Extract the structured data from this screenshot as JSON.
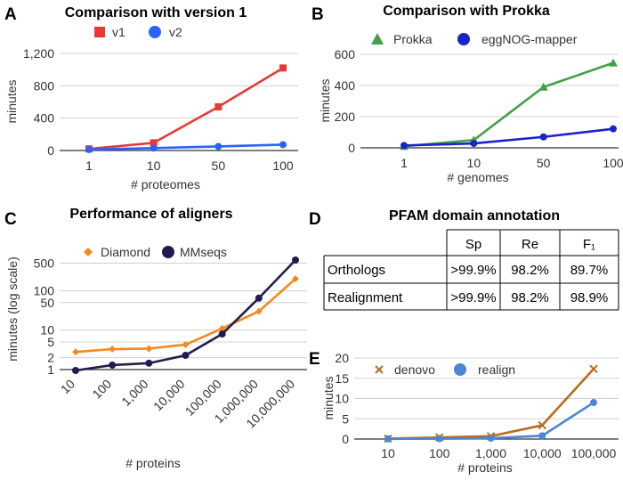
{
  "chart_data": [
    {
      "panel": "A",
      "type": "line",
      "title": "Comparison with version 1",
      "xlabel": "# proteomes",
      "ylabel": "minutes",
      "categories": [
        "1",
        "10",
        "50",
        "100"
      ],
      "ylim": [
        0,
        1200
      ],
      "yticks": [
        "0",
        "400",
        "800",
        "1,200"
      ],
      "ytick_values": [
        0,
        400,
        800,
        1200
      ],
      "series": [
        {
          "name": "v1",
          "color": "#e53935",
          "marker": "square",
          "values": [
            20,
            95,
            540,
            1020
          ]
        },
        {
          "name": "v2",
          "color": "#2962ff",
          "marker": "circle",
          "values": [
            12,
            30,
            50,
            72
          ]
        }
      ]
    },
    {
      "panel": "B",
      "type": "line",
      "title": "Comparison with Prokka",
      "xlabel": "# genomes",
      "ylabel": "minutes",
      "categories": [
        "1",
        "10",
        "50",
        "100"
      ],
      "ylim": [
        0,
        600
      ],
      "yticks": [
        "0",
        "200",
        "400",
        "600"
      ],
      "ytick_values": [
        0,
        200,
        400,
        600
      ],
      "series": [
        {
          "name": "Prokka",
          "color": "#43a047",
          "marker": "triangle",
          "values": [
            10,
            50,
            390,
            545
          ]
        },
        {
          "name": "eggNOG-mapper",
          "color": "#1a23c8",
          "marker": "circle",
          "values": [
            15,
            28,
            70,
            122
          ]
        }
      ]
    },
    {
      "panel": "C",
      "type": "line",
      "scale": "log",
      "title": "Performance of aligners",
      "xlabel": "# proteins",
      "ylabel": "minutes (log scale)",
      "categories": [
        "10",
        "100",
        "1,000",
        "10,000",
        "100,000",
        "1,000,000",
        "10,000,000"
      ],
      "ylim": [
        1,
        600
      ],
      "yticks": [
        "1",
        "2",
        "5",
        "10",
        "50",
        "100",
        "500"
      ],
      "ytick_values": [
        1,
        2,
        5,
        10,
        50,
        100,
        500
      ],
      "series": [
        {
          "name": "Diamond",
          "color": "#f08a24",
          "marker": "diamond",
          "values": [
            2.8,
            3.3,
            3.4,
            4.3,
            11,
            30,
            200
          ]
        },
        {
          "name": "MMseqs",
          "color": "#231b4d",
          "marker": "circle",
          "values": [
            0.95,
            1.3,
            1.45,
            2.3,
            8,
            65,
            600
          ]
        }
      ]
    },
    {
      "panel": "E",
      "type": "line",
      "xlabel": "# proteins",
      "ylabel": "minutes",
      "categories": [
        "10",
        "100",
        "1,000",
        "10,000",
        "100,000"
      ],
      "ylim": [
        0,
        20
      ],
      "yticks": [
        "0",
        "5",
        "10",
        "15",
        "20"
      ],
      "ytick_values": [
        0,
        5,
        10,
        15,
        20
      ],
      "series": [
        {
          "name": "denovo",
          "color": "#b86d1e",
          "marker": "x",
          "values": [
            0.1,
            0.4,
            0.7,
            3.4,
            17.3
          ]
        },
        {
          "name": "realign",
          "color": "#4a86d4",
          "marker": "circle",
          "values": [
            0.05,
            0.1,
            0.2,
            0.8,
            9.0
          ]
        }
      ]
    }
  ],
  "panels": {
    "A": "A",
    "B": "B",
    "C": "C",
    "D": "D",
    "E": "E"
  },
  "table": {
    "title": "PFAM domain annotation",
    "columns": [
      "",
      "Sp",
      "Re",
      "F₁"
    ],
    "rows": [
      [
        "Orthologs",
        ">99.9%",
        "98.2%",
        "89.7%"
      ],
      [
        "Realignment",
        ">99.9%",
        "98.2%",
        "98.9%"
      ]
    ]
  },
  "colors": {
    "grid": "#d0d0d0",
    "axis": "#333333"
  }
}
